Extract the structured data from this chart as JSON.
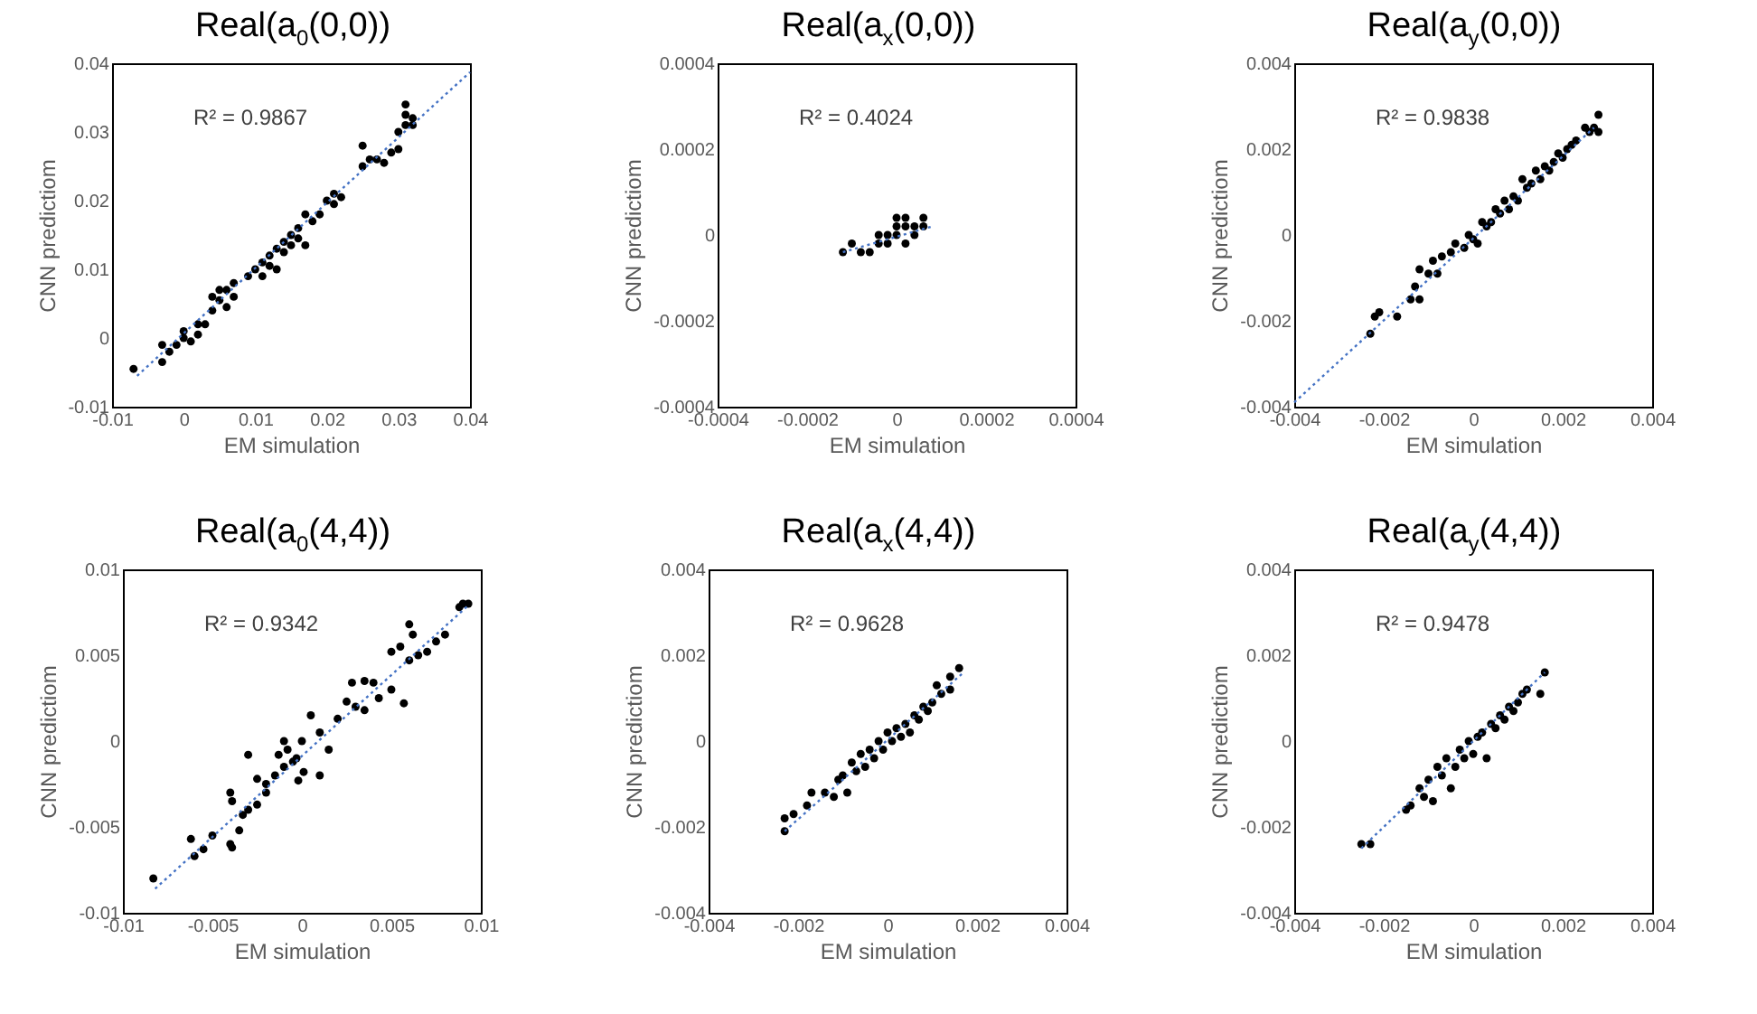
{
  "chart_data": [
    {
      "type": "scatter",
      "title": "Real(a$_{0}$(0,0))",
      "xlabel": "EM simulation",
      "ylabel": "CNN predictiom",
      "annotations": [
        "R² = 0.9867"
      ],
      "xlim": [
        -0.01,
        0.04
      ],
      "ylim": [
        -0.01,
        0.04
      ],
      "xticks": [
        -0.01,
        0,
        0.01,
        0.02,
        0.03,
        0.04
      ],
      "yticks": [
        -0.01,
        0,
        0.01,
        0.02,
        0.03,
        0.04
      ],
      "marker": "circle",
      "series": [
        {
          "color": "#000000",
          "x": [
            -0.007,
            -0.003,
            -0.003,
            -0.002,
            -0.001,
            0,
            0,
            0.001,
            0.002,
            0.002,
            0.003,
            0.004,
            0.004,
            0.005,
            0.005,
            0.006,
            0.006,
            0.007,
            0.007,
            0.009,
            0.01,
            0.011,
            0.011,
            0.012,
            0.012,
            0.013,
            0.013,
            0.014,
            0.014,
            0.015,
            0.015,
            0.016,
            0.016,
            0.017,
            0.017,
            0.018,
            0.019,
            0.02,
            0.021,
            0.021,
            0.022,
            0.025,
            0.025,
            0.026,
            0.027,
            0.028,
            0.029,
            0.03,
            0.03,
            0.031,
            0.031,
            0.032,
            0.032,
            0.031
          ],
          "values": [
            -0.0045,
            -0.0035,
            -0.001,
            -0.002,
            -0.001,
            0,
            0.001,
            -0.0005,
            0.002,
            0.0005,
            0.002,
            0.004,
            0.006,
            0.007,
            0.0055,
            0.007,
            0.0045,
            0.008,
            0.006,
            0.009,
            0.01,
            0.009,
            0.011,
            0.012,
            0.0105,
            0.013,
            0.01,
            0.014,
            0.0125,
            0.015,
            0.0135,
            0.016,
            0.0145,
            0.0135,
            0.018,
            0.017,
            0.018,
            0.02,
            0.021,
            0.0195,
            0.0205,
            0.028,
            0.025,
            0.026,
            0.026,
            0.0255,
            0.027,
            0.03,
            0.0275,
            0.031,
            0.034,
            0.032,
            0.031,
            0.0325
          ]
        },
        {
          "type": "line",
          "color": "#4472c4",
          "line_style": "dotted",
          "marker": "none",
          "x": [
            -0.0065,
            0.04
          ],
          "values": [
            -0.0055,
            0.0387
          ]
        }
      ]
    },
    {
      "type": "scatter",
      "title": "Real(a$_{x}$(0,0))",
      "xlabel": "EM simulation",
      "ylabel": "CNN predictiom",
      "annotations": [
        "R² = 0.4024"
      ],
      "xlim": [
        -0.0004,
        0.0004
      ],
      "ylim": [
        -0.0004,
        0.0004
      ],
      "xticks": [
        -0.0004,
        -0.0002,
        0,
        0.0002,
        0.0004
      ],
      "yticks": [
        -0.0004,
        -0.0002,
        0,
        0.0002,
        0.0004
      ],
      "marker": "circle",
      "series": [
        {
          "color": "#000000",
          "x": [
            -0.00012,
            -0.0001,
            -8e-05,
            -6e-05,
            -4e-05,
            -4e-05,
            -2e-05,
            -2e-05,
            0,
            0,
            0,
            2e-05,
            2e-05,
            2e-05,
            4e-05,
            4e-05,
            6e-05,
            6e-05
          ],
          "values": [
            -4e-05,
            -2e-05,
            -4e-05,
            -4e-05,
            -2e-05,
            0,
            0,
            -2e-05,
            2e-05,
            0,
            4e-05,
            2e-05,
            -2e-05,
            4e-05,
            2e-05,
            0,
            2e-05,
            4e-05
          ]
        },
        {
          "type": "line",
          "color": "#4472c4",
          "line_style": "dotted",
          "marker": "none",
          "x": [
            -0.00012,
            8e-05
          ],
          "values": [
            -4e-05,
            2e-05
          ]
        }
      ]
    },
    {
      "type": "scatter",
      "title": "Real(a$_{y}$(0,0))",
      "xlabel": "EM simulation",
      "ylabel": "CNN predictiom",
      "annotations": [
        "R² = 0.9838"
      ],
      "xlim": [
        -0.004,
        0.004
      ],
      "ylim": [
        -0.004,
        0.004
      ],
      "xticks": [
        -0.004,
        -0.002,
        0,
        0.002,
        0.004
      ],
      "yticks": [
        -0.004,
        -0.002,
        0,
        0.002,
        0.004
      ],
      "marker": "circle",
      "series": [
        {
          "color": "#000000",
          "x": [
            -0.0023,
            -0.0022,
            -0.0021,
            -0.0017,
            -0.0014,
            -0.0013,
            -0.0012,
            -0.0012,
            -0.001,
            -0.0009,
            -0.0008,
            -0.0007,
            -0.0005,
            -0.0004,
            -0.0002,
            -0.0001,
            0,
            0.0001,
            0.0002,
            0.0003,
            0.0004,
            0.0005,
            0.0006,
            0.0007,
            0.0008,
            0.0009,
            0.001,
            0.0011,
            0.0012,
            0.0013,
            0.0014,
            0.0015,
            0.0016,
            0.0017,
            0.0018,
            0.0019,
            0.002,
            0.0021,
            0.0022,
            0.0023,
            0.0025,
            0.0026,
            0.0028,
            0.0028,
            0.0027
          ],
          "values": [
            -0.0023,
            -0.0019,
            -0.0018,
            -0.0019,
            -0.0015,
            -0.0012,
            -0.0015,
            -0.0008,
            -0.0009,
            -0.0006,
            -0.0009,
            -0.0005,
            -0.0004,
            -0.0002,
            -0.0003,
            0,
            -0.0001,
            -0.0002,
            0.0003,
            0.0002,
            0.0003,
            0.0006,
            0.0005,
            0.0008,
            0.0006,
            0.0009,
            0.0008,
            0.0013,
            0.0011,
            0.0012,
            0.0015,
            0.0013,
            0.0016,
            0.0015,
            0.0017,
            0.0019,
            0.0018,
            0.002,
            0.0021,
            0.0022,
            0.0025,
            0.0024,
            0.0024,
            0.0028,
            0.0025
          ]
        },
        {
          "type": "line",
          "color": "#4472c4",
          "line_style": "dotted",
          "marker": "none",
          "x": [
            -0.004,
            0.0027
          ],
          "values": [
            -0.0039,
            0.0025
          ]
        }
      ]
    },
    {
      "type": "scatter",
      "title": "Real(a$_{0}$(4,4))",
      "xlabel": "EM simulation",
      "ylabel": "CNN predictiom",
      "annotations": [
        "R² = 0.9342"
      ],
      "xlim": [
        -0.01,
        0.01
      ],
      "ylim": [
        -0.01,
        0.01
      ],
      "xticks": [
        -0.01,
        -0.005,
        0,
        0.005,
        0.01
      ],
      "yticks": [
        -0.01,
        -0.005,
        0,
        0.005,
        0.01
      ],
      "marker": "circle",
      "series": [
        {
          "color": "#000000",
          "x": [
            -0.0083,
            -0.0062,
            -0.006,
            -0.0055,
            -0.005,
            -0.004,
            -0.0039,
            -0.004,
            -0.0039,
            -0.0035,
            -0.0033,
            -0.003,
            -0.003,
            -0.0025,
            -0.0025,
            -0.002,
            -0.002,
            -0.0015,
            -0.0013,
            -0.001,
            -0.001,
            -0.0008,
            -0.0005,
            -0.0003,
            -0.0002,
            0,
            0.0001,
            0.0005,
            0.001,
            0.001,
            0.0015,
            0.002,
            0.0025,
            0.0028,
            0.003,
            0.0035,
            0.0035,
            0.004,
            0.0043,
            0.005,
            0.005,
            0.0055,
            0.0057,
            0.006,
            0.006,
            0.0062,
            0.0065,
            0.007,
            0.0075,
            0.008,
            0.0088,
            0.009,
            0.0093
          ],
          "values": [
            -0.008,
            -0.0057,
            -0.0067,
            -0.0063,
            -0.0055,
            -0.003,
            -0.0035,
            -0.006,
            -0.0062,
            -0.0052,
            -0.0043,
            -0.0008,
            -0.004,
            -0.0022,
            -0.0037,
            -0.003,
            -0.0025,
            -0.002,
            -0.0008,
            0,
            -0.0015,
            -0.0005,
            -0.0012,
            -0.001,
            -0.0023,
            0,
            -0.0018,
            0.0015,
            0.0005,
            -0.002,
            -0.0005,
            0.0013,
            0.0023,
            0.0034,
            0.002,
            0.0035,
            0.0018,
            0.0034,
            0.0025,
            0.0052,
            0.003,
            0.0055,
            0.0022,
            0.0068,
            0.0047,
            0.0062,
            0.005,
            0.0052,
            0.0058,
            0.0062,
            0.0078,
            0.008,
            0.008
          ]
        },
        {
          "type": "line",
          "color": "#4472c4",
          "line_style": "dotted",
          "marker": "none",
          "x": [
            -0.0082,
            0.0093
          ],
          "values": [
            -0.0086,
            0.0079
          ]
        }
      ]
    },
    {
      "type": "scatter",
      "title": "Real(a$_{x}$(4,4))",
      "xlabel": "EM simulation",
      "ylabel": "CNN predictiom",
      "annotations": [
        "R² = 0.9628"
      ],
      "xlim": [
        -0.004,
        0.004
      ],
      "ylim": [
        -0.004,
        0.004
      ],
      "xticks": [
        -0.004,
        -0.002,
        0,
        0.002,
        0.004
      ],
      "yticks": [
        -0.004,
        -0.002,
        0,
        0.002,
        0.004
      ],
      "marker": "circle",
      "series": [
        {
          "color": "#000000",
          "x": [
            -0.0023,
            -0.0023,
            -0.0021,
            -0.0018,
            -0.0017,
            -0.0014,
            -0.0012,
            -0.0011,
            -0.001,
            -0.0009,
            -0.0008,
            -0.0007,
            -0.0006,
            -0.0005,
            -0.0004,
            -0.0003,
            -0.0002,
            -0.0001,
            0,
            0.0001,
            0.0002,
            0.0003,
            0.0004,
            0.0005,
            0.0006,
            0.0007,
            0.0008,
            0.0009,
            0.001,
            0.0011,
            0.0012,
            0.0014,
            0.0014,
            0.0016
          ],
          "values": [
            -0.0021,
            -0.0018,
            -0.0017,
            -0.0015,
            -0.0012,
            -0.0012,
            -0.0013,
            -0.0009,
            -0.0008,
            -0.0012,
            -0.0005,
            -0.0007,
            -0.0003,
            -0.0006,
            -0.0002,
            -0.0004,
            0,
            -0.0002,
            0.0002,
            0,
            0.0003,
            0.0001,
            0.0004,
            0.0002,
            0.0006,
            0.0005,
            0.0008,
            0.0007,
            0.0009,
            0.0013,
            0.0011,
            0.0015,
            0.0012,
            0.0017
          ]
        },
        {
          "type": "line",
          "color": "#4472c4",
          "line_style": "dotted",
          "marker": "none",
          "x": [
            -0.0023,
            0.0017
          ],
          "values": [
            -0.0021,
            0.0016
          ]
        }
      ]
    },
    {
      "type": "scatter",
      "title": "Real(a$_{y}$(4,4))",
      "xlabel": "EM simulation",
      "ylabel": "CNN predictiom",
      "annotations": [
        "R² = 0.9478"
      ],
      "xlim": [
        -0.004,
        0.004
      ],
      "ylim": [
        -0.004,
        0.004
      ],
      "xticks": [
        -0.004,
        -0.002,
        0,
        0.002,
        0.004
      ],
      "yticks": [
        -0.004,
        -0.002,
        0,
        0.002,
        0.004
      ],
      "marker": "circle",
      "series": [
        {
          "color": "#000000",
          "x": [
            -0.0025,
            -0.0023,
            -0.0015,
            -0.0014,
            -0.0012,
            -0.0011,
            -0.001,
            -0.0009,
            -0.0008,
            -0.0007,
            -0.0006,
            -0.0005,
            -0.0004,
            -0.0003,
            -0.0002,
            -0.0001,
            0,
            0.0001,
            0.0002,
            0.0003,
            0.0004,
            0.0005,
            0.0006,
            0.0007,
            0.0008,
            0.0009,
            0.001,
            0.0011,
            0.0012,
            0.0015,
            0.0016
          ],
          "values": [
            -0.0024,
            -0.0024,
            -0.0016,
            -0.0015,
            -0.0011,
            -0.0013,
            -0.0009,
            -0.0014,
            -0.0006,
            -0.0008,
            -0.0004,
            -0.0011,
            -0.0006,
            -0.0002,
            -0.0004,
            0,
            -0.0003,
            0.0001,
            0.0002,
            -0.0004,
            0.0004,
            0.0003,
            0.0006,
            0.0005,
            0.0008,
            0.0007,
            0.0009,
            0.0011,
            0.0012,
            0.0011,
            0.0016
          ]
        },
        {
          "type": "line",
          "color": "#4472c4",
          "line_style": "dotted",
          "marker": "none",
          "x": [
            -0.0025,
            0.0016
          ],
          "values": [
            -0.0025,
            0.0016
          ]
        }
      ]
    }
  ]
}
